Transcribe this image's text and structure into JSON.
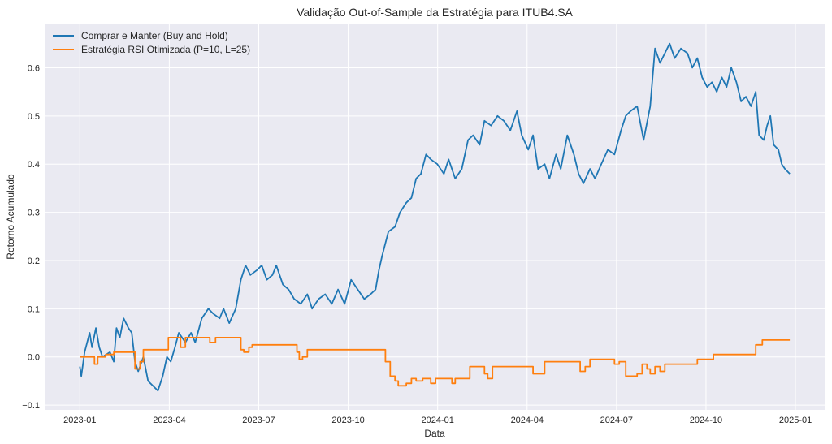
{
  "chart_data": {
    "type": "line",
    "title": "Validação Out-of-Sample da Estratégia para ITUB4.SA",
    "xlabel": "Data",
    "ylabel": "Retorno Acumulado",
    "x_unit": "months since 2023-01",
    "xticks": [
      {
        "m": 0,
        "label": "2023-01"
      },
      {
        "m": 3,
        "label": "2023-04"
      },
      {
        "m": 6,
        "label": "2023-07"
      },
      {
        "m": 9,
        "label": "2023-10"
      },
      {
        "m": 12,
        "label": "2024-01"
      },
      {
        "m": 15,
        "label": "2024-04"
      },
      {
        "m": 18,
        "label": "2024-07"
      },
      {
        "m": 21,
        "label": "2024-10"
      },
      {
        "m": 24,
        "label": "2025-01"
      }
    ],
    "yticks": [
      {
        "v": -0.1,
        "label": "−0.1"
      },
      {
        "v": 0,
        "label": "0.0"
      },
      {
        "v": 0.1,
        "label": "0.1"
      },
      {
        "v": 0.2,
        "label": "0.2"
      },
      {
        "v": 0.3,
        "label": "0.3"
      },
      {
        "v": 0.4,
        "label": "0.4"
      },
      {
        "v": 0.5,
        "label": "0.5"
      },
      {
        "v": 0.6,
        "label": "0.6"
      }
    ],
    "ylim": [
      -0.11,
      0.69
    ],
    "xlim": [
      -1.18,
      24.98
    ],
    "grid": true,
    "legend_position": "top-left",
    "series": [
      {
        "name": "Comprar e Manter (Buy and Hold)",
        "color": "#1f77b4",
        "style": "line",
        "points": [
          [
            0,
            -0.02
          ],
          [
            0.05,
            -0.04
          ],
          [
            0.16,
            0.01
          ],
          [
            0.33,
            0.05
          ],
          [
            0.41,
            0.02
          ],
          [
            0.54,
            0.06
          ],
          [
            0.65,
            0.02
          ],
          [
            0.76,
            0.0
          ],
          [
            1.01,
            0.01
          ],
          [
            1.14,
            -0.01
          ],
          [
            1.23,
            0.06
          ],
          [
            1.34,
            0.04
          ],
          [
            1.47,
            0.08
          ],
          [
            1.63,
            0.06
          ],
          [
            1.74,
            0.05
          ],
          [
            1.85,
            -0.01
          ],
          [
            1.96,
            -0.03
          ],
          [
            2.13,
            0.0
          ],
          [
            2.29,
            -0.05
          ],
          [
            2.45,
            -0.06
          ],
          [
            2.62,
            -0.07
          ],
          [
            2.78,
            -0.04
          ],
          [
            2.92,
            0.0
          ],
          [
            3.05,
            -0.01
          ],
          [
            3.19,
            0.02
          ],
          [
            3.32,
            0.05
          ],
          [
            3.54,
            0.03
          ],
          [
            3.73,
            0.05
          ],
          [
            3.87,
            0.03
          ],
          [
            4.09,
            0.08
          ],
          [
            4.31,
            0.1
          ],
          [
            4.47,
            0.09
          ],
          [
            4.69,
            0.08
          ],
          [
            4.82,
            0.1
          ],
          [
            5.01,
            0.07
          ],
          [
            5.23,
            0.1
          ],
          [
            5.4,
            0.16
          ],
          [
            5.56,
            0.19
          ],
          [
            5.72,
            0.17
          ],
          [
            5.94,
            0.18
          ],
          [
            6.1,
            0.19
          ],
          [
            6.27,
            0.16
          ],
          [
            6.46,
            0.17
          ],
          [
            6.59,
            0.19
          ],
          [
            6.81,
            0.15
          ],
          [
            7.0,
            0.14
          ],
          [
            7.19,
            0.12
          ],
          [
            7.41,
            0.11
          ],
          [
            7.63,
            0.13
          ],
          [
            7.79,
            0.1
          ],
          [
            8.01,
            0.12
          ],
          [
            8.23,
            0.13
          ],
          [
            8.45,
            0.11
          ],
          [
            8.66,
            0.14
          ],
          [
            8.88,
            0.11
          ],
          [
            9.1,
            0.16
          ],
          [
            9.32,
            0.14
          ],
          [
            9.54,
            0.12
          ],
          [
            9.75,
            0.13
          ],
          [
            9.92,
            0.14
          ],
          [
            10.03,
            0.18
          ],
          [
            10.14,
            0.21
          ],
          [
            10.35,
            0.26
          ],
          [
            10.57,
            0.27
          ],
          [
            10.74,
            0.3
          ],
          [
            10.95,
            0.32
          ],
          [
            11.12,
            0.33
          ],
          [
            11.28,
            0.37
          ],
          [
            11.44,
            0.38
          ],
          [
            11.61,
            0.42
          ],
          [
            11.77,
            0.41
          ],
          [
            11.99,
            0.4
          ],
          [
            12.21,
            0.38
          ],
          [
            12.37,
            0.41
          ],
          [
            12.59,
            0.37
          ],
          [
            12.81,
            0.39
          ],
          [
            13.02,
            0.45
          ],
          [
            13.19,
            0.46
          ],
          [
            13.41,
            0.44
          ],
          [
            13.57,
            0.49
          ],
          [
            13.79,
            0.48
          ],
          [
            14.01,
            0.5
          ],
          [
            14.22,
            0.49
          ],
          [
            14.44,
            0.47
          ],
          [
            14.66,
            0.51
          ],
          [
            14.82,
            0.46
          ],
          [
            15.04,
            0.43
          ],
          [
            15.2,
            0.46
          ],
          [
            15.37,
            0.39
          ],
          [
            15.59,
            0.4
          ],
          [
            15.75,
            0.37
          ],
          [
            15.97,
            0.42
          ],
          [
            16.13,
            0.39
          ],
          [
            16.35,
            0.46
          ],
          [
            16.57,
            0.42
          ],
          [
            16.73,
            0.38
          ],
          [
            16.89,
            0.36
          ],
          [
            17.11,
            0.39
          ],
          [
            17.28,
            0.37
          ],
          [
            17.49,
            0.4
          ],
          [
            17.71,
            0.43
          ],
          [
            17.93,
            0.42
          ],
          [
            18.15,
            0.47
          ],
          [
            18.31,
            0.5
          ],
          [
            18.47,
            0.51
          ],
          [
            18.69,
            0.52
          ],
          [
            18.91,
            0.45
          ],
          [
            19.13,
            0.52
          ],
          [
            19.29,
            0.64
          ],
          [
            19.46,
            0.61
          ],
          [
            19.62,
            0.63
          ],
          [
            19.78,
            0.65
          ],
          [
            19.95,
            0.62
          ],
          [
            20.16,
            0.64
          ],
          [
            20.38,
            0.63
          ],
          [
            20.54,
            0.6
          ],
          [
            20.71,
            0.62
          ],
          [
            20.87,
            0.58
          ],
          [
            21.04,
            0.56
          ],
          [
            21.2,
            0.57
          ],
          [
            21.36,
            0.55
          ],
          [
            21.53,
            0.58
          ],
          [
            21.69,
            0.56
          ],
          [
            21.85,
            0.6
          ],
          [
            22.02,
            0.57
          ],
          [
            22.18,
            0.53
          ],
          [
            22.34,
            0.54
          ],
          [
            22.51,
            0.52
          ],
          [
            22.67,
            0.55
          ],
          [
            22.78,
            0.46
          ],
          [
            22.94,
            0.45
          ],
          [
            23.05,
            0.48
          ],
          [
            23.16,
            0.5
          ],
          [
            23.27,
            0.44
          ],
          [
            23.43,
            0.43
          ],
          [
            23.54,
            0.4
          ],
          [
            23.65,
            0.39
          ],
          [
            23.81,
            0.38
          ]
        ]
      },
      {
        "name": "Estratégia RSI Otimizada (P=10, L=25)",
        "color": "#ff7f0e",
        "style": "step",
        "points": [
          [
            0,
            0
          ],
          [
            0.49,
            -0.015
          ],
          [
            0.6,
            0.0
          ],
          [
            0.87,
            0.005
          ],
          [
            1.14,
            0.01
          ],
          [
            1.85,
            -0.025
          ],
          [
            2.02,
            -0.01
          ],
          [
            2.13,
            0.015
          ],
          [
            2.97,
            0.04
          ],
          [
            3.38,
            0.02
          ],
          [
            3.54,
            0.04
          ],
          [
            4.36,
            0.03
          ],
          [
            4.55,
            0.04
          ],
          [
            5.4,
            0.015
          ],
          [
            5.5,
            0.01
          ],
          [
            5.67,
            0.02
          ],
          [
            5.78,
            0.025
          ],
          [
            7.28,
            0.01
          ],
          [
            7.36,
            -0.005
          ],
          [
            7.47,
            0.0
          ],
          [
            7.63,
            0.015
          ],
          [
            10.25,
            -0.01
          ],
          [
            10.41,
            -0.04
          ],
          [
            10.57,
            -0.05
          ],
          [
            10.68,
            -0.06
          ],
          [
            10.95,
            -0.055
          ],
          [
            11.12,
            -0.045
          ],
          [
            11.28,
            -0.05
          ],
          [
            11.5,
            -0.045
          ],
          [
            11.77,
            -0.055
          ],
          [
            11.93,
            -0.045
          ],
          [
            12.48,
            -0.055
          ],
          [
            12.59,
            -0.045
          ],
          [
            13.08,
            -0.02
          ],
          [
            13.57,
            -0.035
          ],
          [
            13.68,
            -0.045
          ],
          [
            13.84,
            -0.02
          ],
          [
            15.2,
            -0.035
          ],
          [
            15.59,
            -0.01
          ],
          [
            16.78,
            -0.03
          ],
          [
            16.95,
            -0.02
          ],
          [
            17.11,
            -0.005
          ],
          [
            17.93,
            -0.015
          ],
          [
            18.09,
            -0.01
          ],
          [
            18.31,
            -0.04
          ],
          [
            18.69,
            -0.035
          ],
          [
            18.86,
            -0.015
          ],
          [
            19.02,
            -0.025
          ],
          [
            19.13,
            -0.035
          ],
          [
            19.29,
            -0.02
          ],
          [
            19.46,
            -0.03
          ],
          [
            19.62,
            -0.015
          ],
          [
            20.71,
            -0.005
          ],
          [
            21.25,
            0.005
          ],
          [
            22.67,
            0.025
          ],
          [
            22.89,
            0.035
          ],
          [
            23.81,
            0.035
          ]
        ]
      }
    ]
  }
}
